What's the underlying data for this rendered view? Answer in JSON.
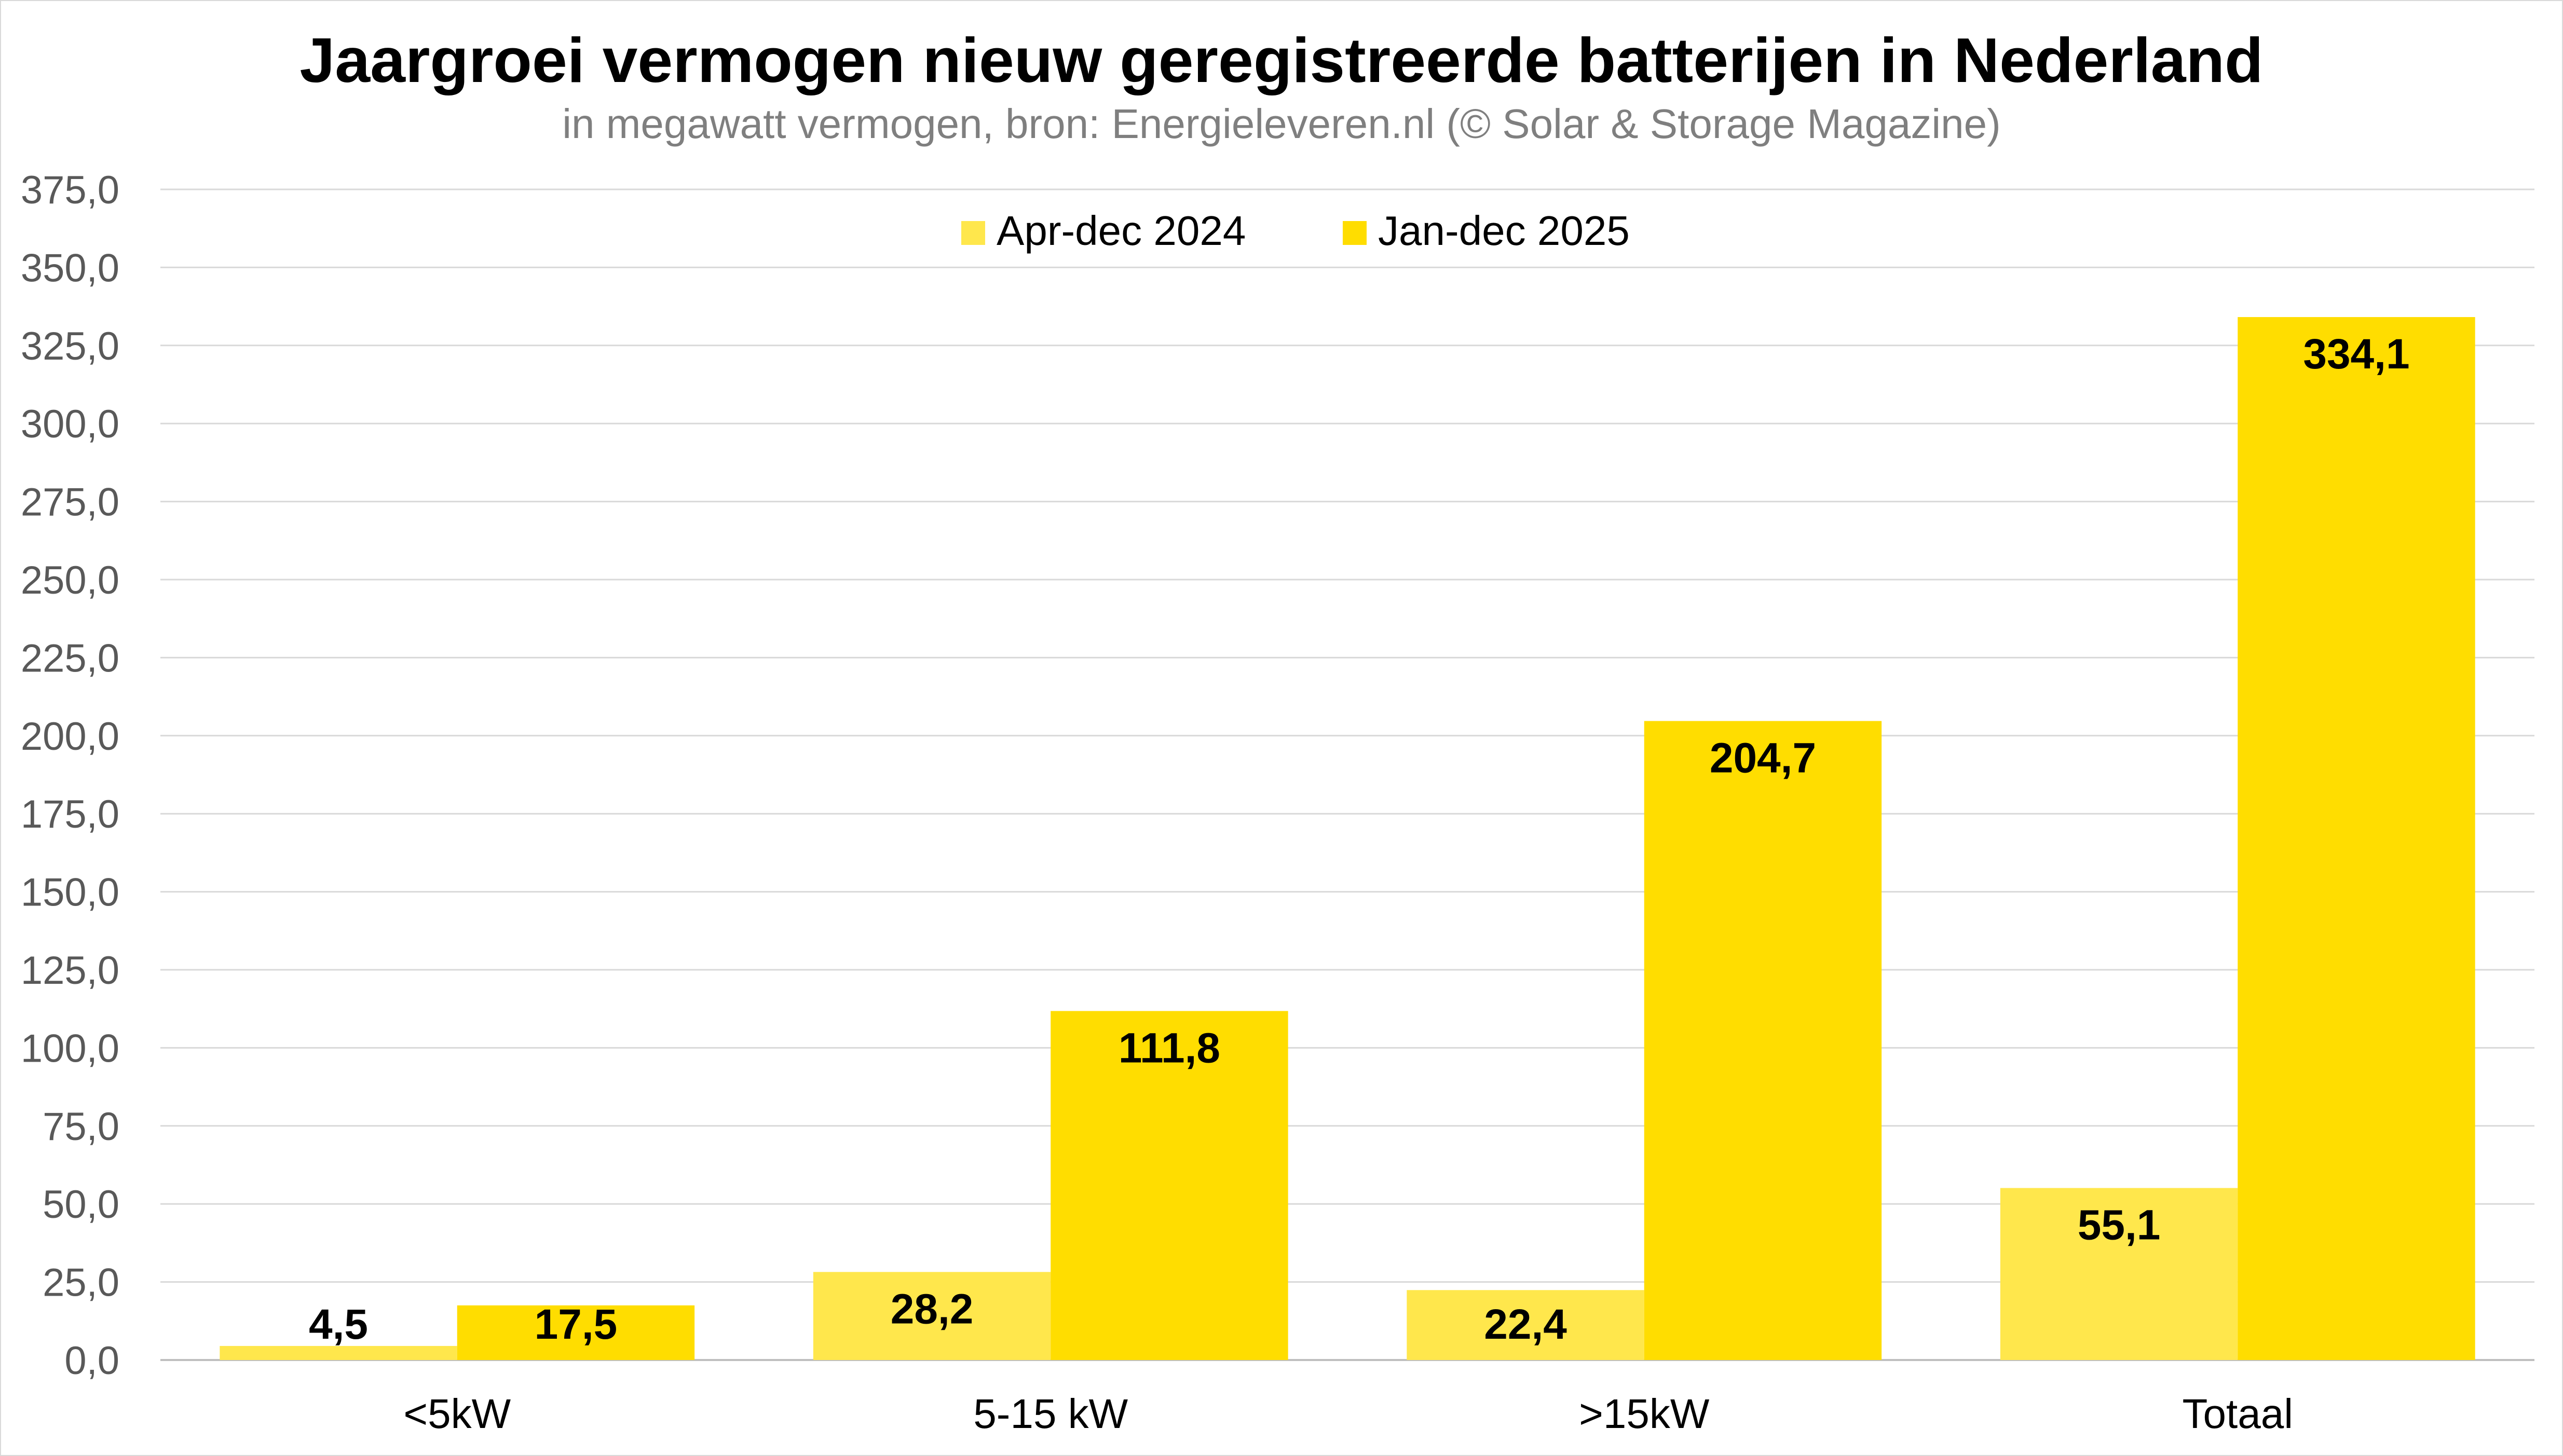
{
  "chart_data": {
    "type": "bar",
    "title": "Jaargroei vermogen nieuw geregistreerde batterijen in Nederland",
    "subtitle": "in megawatt vermogen, bron: Energieleveren.nl (© Solar & Storage Magazine)",
    "xlabel": "",
    "ylabel": "",
    "categories": [
      "<5kW",
      "5-15 kW",
      ">15kW",
      "Totaal"
    ],
    "series": [
      {
        "name": "Apr-dec 2024",
        "color": "#FFE74C",
        "values": [
          4.5,
          28.2,
          22.4,
          55.1
        ],
        "labels": [
          "4,5",
          "28,2",
          "22,4",
          "55,1"
        ]
      },
      {
        "name": "Jan-dec 2025",
        "color": "#FFDD00",
        "values": [
          17.5,
          111.8,
          204.7,
          334.1
        ],
        "labels": [
          "17,5",
          "111,8",
          "204,7",
          "334,1"
        ]
      }
    ],
    "ylim": [
      0,
      375
    ],
    "yticks": [
      0,
      25,
      50,
      75,
      100,
      125,
      150,
      175,
      200,
      225,
      250,
      275,
      300,
      325,
      350,
      375
    ],
    "ytick_labels": [
      "0,0",
      "25,0",
      "50,0",
      "75,0",
      "100,0",
      "125,0",
      "150,0",
      "175,0",
      "200,0",
      "225,0",
      "250,0",
      "275,0",
      "300,0",
      "325,0",
      "350,0",
      "375,0"
    ],
    "grid": true,
    "legend_position": "top-center"
  }
}
